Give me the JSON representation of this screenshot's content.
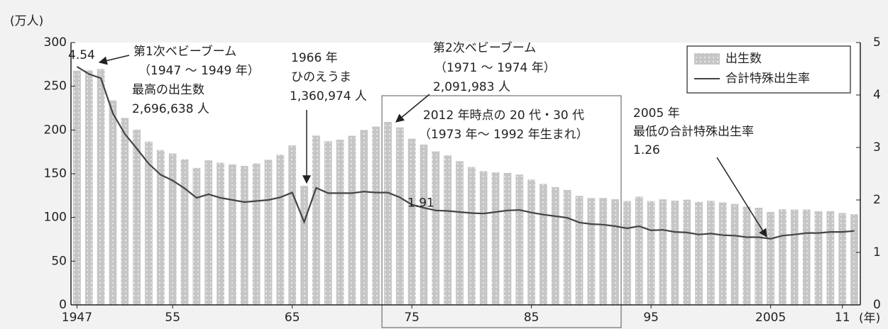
{
  "chart_data": {
    "type": "bar",
    "y_label": "(万人)",
    "x_label": "(年)",
    "categories": [
      "1947",
      null,
      null,
      null,
      null,
      null,
      null,
      null,
      "55",
      null,
      null,
      null,
      null,
      null,
      null,
      null,
      null,
      null,
      "65",
      null,
      null,
      null,
      null,
      null,
      null,
      null,
      null,
      null,
      "75",
      null,
      null,
      null,
      null,
      null,
      null,
      null,
      null,
      null,
      "85",
      null,
      null,
      null,
      null,
      null,
      null,
      null,
      null,
      null,
      "95",
      null,
      null,
      null,
      null,
      null,
      null,
      null,
      null,
      null,
      "2005",
      null,
      null,
      null,
      null,
      null,
      "11",
      null
    ],
    "series": [
      {
        "name": "出生数",
        "type": "bar",
        "color": "#c6c6c6",
        "values": [
          267.9,
          268.2,
          269.7,
          233.8,
          213.8,
          200.5,
          186.8,
          177.0,
          173.1,
          166.5,
          156.7,
          165.3,
          162.6,
          160.6,
          158.9,
          161.9,
          166.0,
          171.7,
          182.4,
          136.1,
          193.6,
          187.2,
          188.9,
          193.4,
          200.1,
          203.9,
          209.2,
          203.0,
          190.1,
          183.3,
          175.5,
          170.9,
          164.3,
          157.7,
          152.9,
          151.5,
          150.9,
          149.0,
          143.2,
          138.3,
          134.7,
          131.4,
          124.7,
          122.2,
          122.3,
          120.9,
          118.8,
          123.8,
          118.7,
          120.7,
          119.2,
          120.3,
          117.8,
          119.1,
          117.1,
          115.4,
          112.4,
          111.1,
          106.3,
          109.3,
          109.0,
          109.1,
          107.0,
          107.1,
          105.1,
          103.7
        ]
      },
      {
        "name": "合計特殊出生率",
        "type": "line",
        "axis": "y2",
        "color": "#444444",
        "values": [
          4.54,
          4.4,
          4.32,
          3.65,
          3.26,
          2.98,
          2.69,
          2.48,
          2.37,
          2.22,
          2.04,
          2.11,
          2.04,
          2.0,
          1.96,
          1.98,
          2.0,
          2.05,
          2.14,
          1.58,
          2.23,
          2.13,
          2.13,
          2.13,
          2.16,
          2.14,
          2.14,
          2.05,
          1.91,
          1.85,
          1.8,
          1.79,
          1.77,
          1.75,
          1.74,
          1.77,
          1.8,
          1.81,
          1.76,
          1.72,
          1.69,
          1.66,
          1.57,
          1.54,
          1.53,
          1.5,
          1.46,
          1.5,
          1.42,
          1.43,
          1.39,
          1.38,
          1.34,
          1.36,
          1.33,
          1.32,
          1.29,
          1.29,
          1.26,
          1.32,
          1.34,
          1.37,
          1.37,
          1.39,
          1.39,
          1.41
        ]
      }
    ],
    "ylim": [
      0,
      300
    ],
    "yticks": [
      0,
      50,
      100,
      150,
      200,
      250,
      300
    ],
    "y2lim": [
      0,
      5
    ],
    "y2ticks": [
      0,
      1,
      2,
      3,
      4,
      5
    ],
    "legend": "upper right",
    "annotations": [
      [
        "第1次ベビーブーム",
        "（1947 ～ 1949 年）",
        "最高の出生数",
        "2,696,638 人"
      ],
      [
        "1966 年",
        "ひのえうま",
        "1,360,974 人"
      ],
      [
        "第2次ベビーブーム",
        "（1971 ～ 1974 年）",
        "2,091,983 人"
      ],
      [
        "2012 年時点の 20 代・30 代",
        "（1973 年～ 1992 年生まれ）"
      ],
      [
        "2005 年",
        "最低の合計特殊出生率"
      ]
    ]
  }
}
